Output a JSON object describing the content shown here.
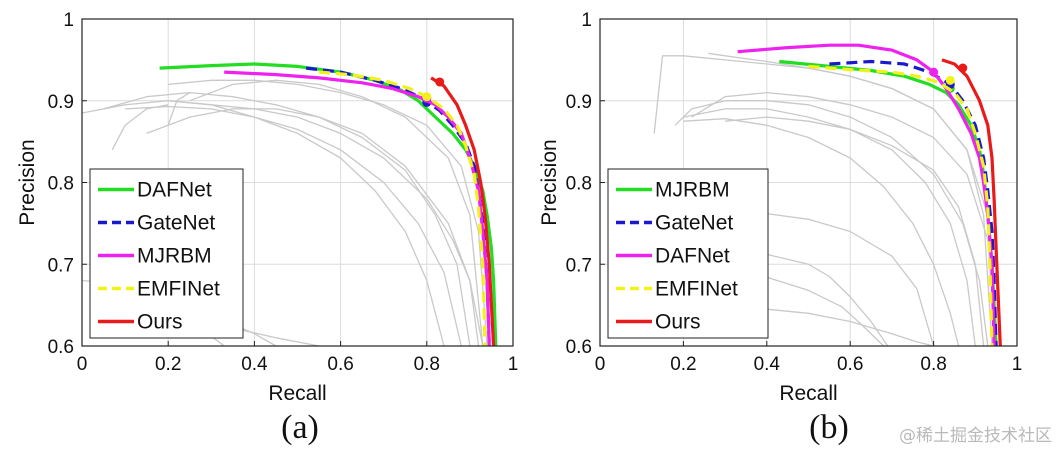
{
  "watermark": "@稀土掘金技术社区",
  "chart_data": [
    {
      "type": "line",
      "caption": "(a)",
      "xlabel": "Recall",
      "ylabel": "Precision",
      "xlim": [
        0,
        1
      ],
      "ylim": [
        0.6,
        1
      ],
      "xticks": [
        0,
        0.2,
        0.4,
        0.6,
        0.8,
        1
      ],
      "xtick_labels": [
        "0",
        "0.2",
        "0.4",
        "0.6",
        "0.8",
        "1"
      ],
      "yticks": [
        0.6,
        0.7,
        0.8,
        0.9,
        1
      ],
      "ytick_labels": [
        "0.6",
        "0.7",
        "0.8",
        "0.9",
        "1"
      ],
      "grid": true,
      "legend_position": "bottom-left",
      "series": [
        {
          "name": "DAFNet",
          "color": "#22dd22",
          "dash": "solid",
          "x": [
            0.18,
            0.3,
            0.4,
            0.5,
            0.6,
            0.68,
            0.74,
            0.78,
            0.82,
            0.86,
            0.89,
            0.91,
            0.93,
            0.94,
            0.95,
            0.955,
            0.96
          ],
          "y": [
            0.94,
            0.943,
            0.945,
            0.942,
            0.935,
            0.925,
            0.913,
            0.9,
            0.88,
            0.86,
            0.84,
            0.82,
            0.79,
            0.76,
            0.72,
            0.68,
            0.6
          ],
          "marker_at": [
            0.8,
            0.9
          ]
        },
        {
          "name": "GateNet",
          "color": "#1a1acc",
          "dash": "dashed",
          "x": [
            0.52,
            0.6,
            0.68,
            0.74,
            0.79,
            0.83,
            0.86,
            0.89,
            0.91,
            0.92,
            0.93,
            0.94,
            0.945
          ],
          "y": [
            0.94,
            0.935,
            0.925,
            0.915,
            0.903,
            0.888,
            0.87,
            0.848,
            0.82,
            0.79,
            0.75,
            0.68,
            0.6
          ],
          "marker_at": [
            0.8,
            0.898
          ]
        },
        {
          "name": "MJRBM",
          "color": "#ee22ee",
          "dash": "solid",
          "x": [
            0.33,
            0.45,
            0.55,
            0.65,
            0.72,
            0.78,
            0.82,
            0.85,
            0.88,
            0.9,
            0.92,
            0.93,
            0.94,
            0.945
          ],
          "y": [
            0.935,
            0.932,
            0.928,
            0.922,
            0.915,
            0.905,
            0.895,
            0.88,
            0.86,
            0.83,
            0.79,
            0.74,
            0.68,
            0.6
          ],
          "marker_at": [
            0.8,
            0.903
          ]
        },
        {
          "name": "EMFINet",
          "color": "#f2f21a",
          "dash": "dashed",
          "x": [
            0.55,
            0.62,
            0.7,
            0.76,
            0.8,
            0.84,
            0.87,
            0.89,
            0.91,
            0.92,
            0.93,
            0.935
          ],
          "y": [
            0.935,
            0.932,
            0.925,
            0.915,
            0.905,
            0.89,
            0.87,
            0.845,
            0.81,
            0.77,
            0.7,
            0.6
          ],
          "marker_at": [
            0.8,
            0.905
          ]
        },
        {
          "name": "Ours",
          "color": "#e81a1a",
          "dash": "solid",
          "x": [
            0.81,
            0.84,
            0.87,
            0.89,
            0.91,
            0.925,
            0.935,
            0.945,
            0.95,
            0.955
          ],
          "y": [
            0.928,
            0.918,
            0.895,
            0.87,
            0.84,
            0.8,
            0.76,
            0.7,
            0.65,
            0.6
          ],
          "marker_at": [
            0.83,
            0.923
          ]
        }
      ],
      "background_curves": [
        {
          "x": [
            0.0,
            0.1,
            0.2,
            0.3,
            0.4,
            0.5,
            0.6,
            0.7,
            0.8,
            0.86,
            0.9,
            0.92
          ],
          "y": [
            0.885,
            0.895,
            0.9,
            0.895,
            0.89,
            0.88,
            0.86,
            0.83,
            0.78,
            0.73,
            0.68,
            0.6
          ]
        },
        {
          "x": [
            0.05,
            0.15,
            0.25,
            0.35,
            0.45,
            0.55,
            0.65,
            0.75,
            0.82,
            0.87,
            0.9
          ],
          "y": [
            0.89,
            0.905,
            0.91,
            0.905,
            0.895,
            0.88,
            0.855,
            0.815,
            0.76,
            0.7,
            0.6
          ]
        },
        {
          "x": [
            0.1,
            0.2,
            0.3,
            0.4,
            0.5,
            0.6,
            0.7,
            0.78,
            0.84,
            0.88
          ],
          "y": [
            0.89,
            0.893,
            0.89,
            0.88,
            0.865,
            0.84,
            0.8,
            0.75,
            0.69,
            0.6
          ]
        },
        {
          "x": [
            0.2,
            0.3,
            0.4,
            0.5,
            0.6,
            0.68,
            0.75,
            0.8,
            0.84
          ],
          "y": [
            0.9,
            0.895,
            0.88,
            0.86,
            0.83,
            0.79,
            0.74,
            0.68,
            0.6
          ]
        },
        {
          "x": [
            0.15,
            0.25,
            0.35,
            0.45,
            0.55,
            0.65,
            0.75,
            0.85,
            0.9,
            0.93
          ],
          "y": [
            0.86,
            0.88,
            0.89,
            0.89,
            0.88,
            0.86,
            0.82,
            0.75,
            0.68,
            0.6
          ]
        },
        {
          "x": [
            0.2,
            0.3,
            0.4,
            0.5,
            0.6,
            0.7,
            0.8,
            0.88,
            0.92,
            0.94
          ],
          "y": [
            0.92,
            0.925,
            0.925,
            0.92,
            0.91,
            0.895,
            0.87,
            0.82,
            0.74,
            0.6
          ]
        },
        {
          "x": [
            0.25,
            0.35,
            0.45,
            0.55,
            0.65,
            0.75,
            0.85,
            0.9,
            0.93
          ],
          "y": [
            0.9,
            0.92,
            0.925,
            0.92,
            0.905,
            0.88,
            0.83,
            0.76,
            0.6
          ]
        },
        {
          "x": [
            0.07,
            0.1,
            0.15,
            0.2
          ],
          "y": [
            0.84,
            0.87,
            0.89,
            0.895
          ]
        },
        {
          "x": [
            0.2,
            0.22,
            0.25
          ],
          "y": [
            0.87,
            0.9,
            0.91
          ]
        },
        {
          "x": [
            0.0,
            0.05,
            0.1,
            0.15,
            0.2,
            0.25,
            0.3,
            0.33
          ],
          "y": [
            0.68,
            0.678,
            0.672,
            0.66,
            0.645,
            0.63,
            0.612,
            0.6
          ]
        },
        {
          "x": [
            0.02,
            0.1,
            0.2,
            0.3,
            0.4,
            0.45
          ],
          "y": [
            0.665,
            0.66,
            0.65,
            0.638,
            0.615,
            0.6
          ]
        },
        {
          "x": [
            0.05,
            0.15,
            0.25,
            0.35,
            0.45,
            0.55
          ],
          "y": [
            0.64,
            0.636,
            0.63,
            0.622,
            0.61,
            0.6
          ]
        }
      ]
    },
    {
      "type": "line",
      "caption": "(b)",
      "xlabel": "Recall",
      "ylabel": "Precision",
      "xlim": [
        0,
        1
      ],
      "ylim": [
        0.6,
        1
      ],
      "xticks": [
        0,
        0.2,
        0.4,
        0.6,
        0.8,
        1
      ],
      "xtick_labels": [
        "0",
        "0.2",
        "0.4",
        "0.6",
        "0.8",
        "1"
      ],
      "yticks": [
        0.6,
        0.7,
        0.8,
        0.9,
        1
      ],
      "ytick_labels": [
        "0.6",
        "0.7",
        "0.8",
        "0.9",
        "1"
      ],
      "grid": true,
      "legend_position": "bottom-left",
      "series": [
        {
          "name": "MJRBM",
          "color": "#22dd22",
          "dash": "solid",
          "x": [
            0.43,
            0.55,
            0.65,
            0.73,
            0.79,
            0.83,
            0.86,
            0.89,
            0.91,
            0.92,
            0.93,
            0.94,
            0.945,
            0.95
          ],
          "y": [
            0.948,
            0.942,
            0.937,
            0.93,
            0.92,
            0.91,
            0.895,
            0.87,
            0.84,
            0.81,
            0.76,
            0.7,
            0.65,
            0.6
          ],
          "marker_at": [
            0.84,
            0.915
          ]
        },
        {
          "name": "GateNet",
          "color": "#1a1acc",
          "dash": "dashed",
          "x": [
            0.55,
            0.65,
            0.73,
            0.79,
            0.84,
            0.87,
            0.9,
            0.92,
            0.93,
            0.94,
            0.945,
            0.95
          ],
          "y": [
            0.945,
            0.948,
            0.945,
            0.935,
            0.92,
            0.9,
            0.87,
            0.83,
            0.79,
            0.74,
            0.68,
            0.6
          ],
          "marker_at": [
            0.84,
            0.92
          ]
        },
        {
          "name": "DAFNet",
          "color": "#ee22ee",
          "dash": "solid",
          "x": [
            0.33,
            0.45,
            0.55,
            0.62,
            0.7,
            0.76,
            0.8,
            0.83,
            0.86,
            0.89,
            0.91,
            0.92,
            0.93,
            0.94,
            0.945
          ],
          "y": [
            0.96,
            0.965,
            0.968,
            0.968,
            0.962,
            0.95,
            0.935,
            0.915,
            0.89,
            0.86,
            0.83,
            0.8,
            0.76,
            0.7,
            0.6
          ],
          "marker_at": [
            0.8,
            0.935
          ]
        },
        {
          "name": "EMFINet",
          "color": "#f2f21a",
          "dash": "dashed",
          "x": [
            0.5,
            0.6,
            0.7,
            0.76,
            0.81,
            0.85,
            0.88,
            0.9,
            0.92,
            0.93,
            0.935,
            0.94
          ],
          "y": [
            0.942,
            0.938,
            0.935,
            0.93,
            0.923,
            0.91,
            0.89,
            0.86,
            0.82,
            0.77,
            0.7,
            0.6
          ],
          "marker_at": [
            0.84,
            0.925
          ]
        },
        {
          "name": "Ours",
          "color": "#e81a1a",
          "dash": "solid",
          "x": [
            0.82,
            0.85,
            0.88,
            0.91,
            0.93,
            0.94,
            0.945,
            0.95,
            0.955,
            0.96
          ],
          "y": [
            0.95,
            0.945,
            0.93,
            0.9,
            0.87,
            0.83,
            0.78,
            0.72,
            0.66,
            0.6
          ],
          "marker_at": [
            0.87,
            0.94
          ]
        }
      ],
      "background_curves": [
        {
          "x": [
            0.13,
            0.15,
            0.2,
            0.3,
            0.4,
            0.5,
            0.6,
            0.7,
            0.8,
            0.88,
            0.93,
            0.95
          ],
          "y": [
            0.86,
            0.955,
            0.955,
            0.95,
            0.945,
            0.94,
            0.93,
            0.915,
            0.89,
            0.84,
            0.76,
            0.6
          ]
        },
        {
          "x": [
            0.26,
            0.3,
            0.4,
            0.5,
            0.6,
            0.7,
            0.8,
            0.88,
            0.92,
            0.94
          ],
          "y": [
            0.958,
            0.955,
            0.948,
            0.94,
            0.93,
            0.915,
            0.89,
            0.84,
            0.76,
            0.6
          ]
        },
        {
          "x": [
            0.18,
            0.22,
            0.3,
            0.4,
            0.5,
            0.6,
            0.7,
            0.8,
            0.87,
            0.91,
            0.93
          ],
          "y": [
            0.87,
            0.89,
            0.9,
            0.9,
            0.895,
            0.88,
            0.855,
            0.81,
            0.75,
            0.68,
            0.6
          ]
        },
        {
          "x": [
            0.2,
            0.3,
            0.4,
            0.5,
            0.6,
            0.7,
            0.78,
            0.84,
            0.88,
            0.9
          ],
          "y": [
            0.88,
            0.89,
            0.89,
            0.88,
            0.865,
            0.84,
            0.8,
            0.75,
            0.68,
            0.6
          ]
        },
        {
          "x": [
            0.2,
            0.3,
            0.4,
            0.5,
            0.6,
            0.68,
            0.75,
            0.8,
            0.84,
            0.86
          ],
          "y": [
            0.875,
            0.878,
            0.87,
            0.855,
            0.83,
            0.795,
            0.75,
            0.7,
            0.64,
            0.6
          ]
        },
        {
          "x": [
            0.22,
            0.3,
            0.4,
            0.5,
            0.6,
            0.7,
            0.8,
            0.88,
            0.93,
            0.95
          ],
          "y": [
            0.88,
            0.905,
            0.91,
            0.905,
            0.895,
            0.88,
            0.855,
            0.81,
            0.73,
            0.6
          ]
        },
        {
          "x": [
            0.3,
            0.4,
            0.5,
            0.6,
            0.7,
            0.8,
            0.86,
            0.9,
            0.92
          ],
          "y": [
            0.875,
            0.88,
            0.875,
            0.865,
            0.845,
            0.815,
            0.77,
            0.7,
            0.6
          ]
        },
        {
          "x": [
            0.2,
            0.25,
            0.3,
            0.4,
            0.5,
            0.6,
            0.7,
            0.76,
            0.8
          ],
          "y": [
            0.68,
            0.76,
            0.765,
            0.762,
            0.755,
            0.74,
            0.71,
            0.67,
            0.6
          ]
        },
        {
          "x": [
            0.2,
            0.3,
            0.4,
            0.5,
            0.55,
            0.6,
            0.65,
            0.69
          ],
          "y": [
            0.71,
            0.718,
            0.712,
            0.7,
            0.685,
            0.66,
            0.63,
            0.6
          ]
        },
        {
          "x": [
            0.18,
            0.3,
            0.4,
            0.5,
            0.58,
            0.63,
            0.68
          ],
          "y": [
            0.69,
            0.692,
            0.684,
            0.668,
            0.648,
            0.625,
            0.6
          ]
        },
        {
          "x": [
            0.3,
            0.4,
            0.5,
            0.6,
            0.7,
            0.76,
            0.8
          ],
          "y": [
            0.64,
            0.645,
            0.64,
            0.63,
            0.615,
            0.605,
            0.6
          ]
        }
      ]
    }
  ]
}
